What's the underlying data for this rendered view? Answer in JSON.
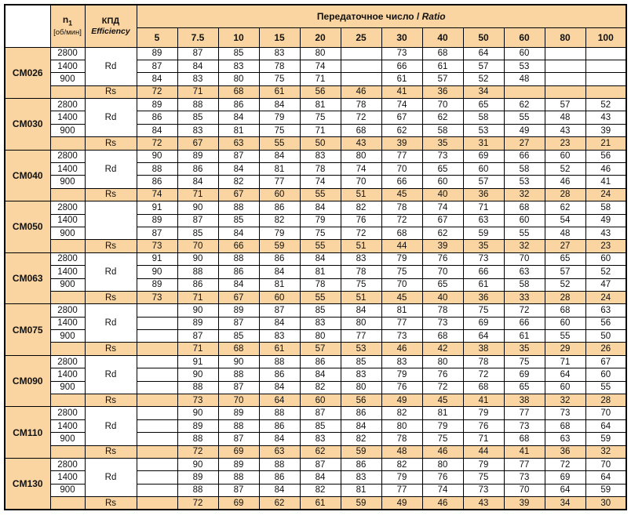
{
  "table": {
    "corner_label": "",
    "speed_header": {
      "main": "n",
      "sub": "1",
      "unit": "[об/мин]"
    },
    "efficiency_header": {
      "ru": "КПД",
      "en": "Efficiency"
    },
    "ratio_header": {
      "ru": "Передаточное число / ",
      "en": "Ratio"
    },
    "ratios": [
      "5",
      "7.5",
      "10",
      "15",
      "20",
      "25",
      "30",
      "40",
      "50",
      "60",
      "80",
      "100"
    ],
    "rd_label": "Rd",
    "rs_label": "Rs",
    "models": [
      {
        "name": "CM026",
        "rd": "Rd",
        "speeds": [
          {
            "rpm": "2800",
            "values": [
              "89",
              "87",
              "85",
              "83",
              "80",
              "",
              "73",
              "68",
              "64",
              "60",
              "",
              ""
            ]
          },
          {
            "rpm": "1400",
            "values": [
              "87",
              "84",
              "83",
              "78",
              "74",
              "",
              "66",
              "61",
              "57",
              "53",
              "",
              ""
            ]
          },
          {
            "rpm": "900",
            "values": [
              "84",
              "83",
              "80",
              "75",
              "71",
              "",
              "61",
              "57",
              "52",
              "48",
              "",
              ""
            ]
          }
        ],
        "rs": [
          "72",
          "71",
          "68",
          "61",
          "56",
          "46",
          "41",
          "36",
          "34",
          "",
          "",
          ""
        ]
      },
      {
        "name": "CM030",
        "rd": "Rd",
        "speeds": [
          {
            "rpm": "2800",
            "values": [
              "89",
              "88",
              "86",
              "84",
              "81",
              "78",
              "74",
              "70",
              "65",
              "62",
              "57",
              "52"
            ]
          },
          {
            "rpm": "1400",
            "values": [
              "86",
              "85",
              "84",
              "79",
              "75",
              "72",
              "67",
              "62",
              "58",
              "55",
              "48",
              "43"
            ]
          },
          {
            "rpm": "900",
            "values": [
              "84",
              "83",
              "81",
              "75",
              "71",
              "68",
              "62",
              "58",
              "53",
              "49",
              "43",
              "39"
            ]
          }
        ],
        "rs": [
          "72",
          "67",
          "63",
          "55",
          "50",
          "43",
          "39",
          "35",
          "31",
          "27",
          "23",
          "21"
        ]
      },
      {
        "name": "CM040",
        "rd": "Rd",
        "speeds": [
          {
            "rpm": "2800",
            "values": [
              "90",
              "89",
              "87",
              "84",
              "83",
              "80",
              "77",
              "73",
              "69",
              "66",
              "60",
              "56"
            ]
          },
          {
            "rpm": "1400",
            "values": [
              "88",
              "86",
              "84",
              "81",
              "78",
              "74",
              "70",
              "65",
              "60",
              "58",
              "52",
              "46"
            ]
          },
          {
            "rpm": "900",
            "values": [
              "86",
              "84",
              "82",
              "77",
              "74",
              "70",
              "66",
              "60",
              "57",
              "53",
              "46",
              "41"
            ]
          }
        ],
        "rs": [
          "74",
          "71",
          "67",
          "60",
          "55",
          "51",
          "45",
          "40",
          "36",
          "32",
          "28",
          "24"
        ]
      },
      {
        "name": "CM050",
        "rd": "",
        "speeds": [
          {
            "rpm": "2800",
            "values": [
              "91",
              "90",
              "88",
              "86",
              "84",
              "82",
              "78",
              "74",
              "71",
              "68",
              "62",
              "58"
            ]
          },
          {
            "rpm": "1400",
            "values": [
              "89",
              "87",
              "85",
              "82",
              "79",
              "76",
              "72",
              "67",
              "63",
              "60",
              "54",
              "49"
            ]
          },
          {
            "rpm": "900",
            "values": [
              "87",
              "85",
              "84",
              "79",
              "75",
              "72",
              "68",
              "62",
              "59",
              "55",
              "48",
              "43"
            ]
          }
        ],
        "rs": [
          "73",
          "70",
          "66",
          "59",
          "55",
          "51",
          "44",
          "39",
          "35",
          "32",
          "27",
          "23"
        ]
      },
      {
        "name": "CM063",
        "rd": "Rd",
        "speeds": [
          {
            "rpm": "2800",
            "values": [
              "91",
              "90",
              "88",
              "86",
              "84",
              "83",
              "79",
              "76",
              "73",
              "70",
              "65",
              "60"
            ]
          },
          {
            "rpm": "1400",
            "values": [
              "90",
              "88",
              "86",
              "84",
              "81",
              "78",
              "75",
              "70",
              "66",
              "63",
              "57",
              "52"
            ]
          },
          {
            "rpm": "900",
            "values": [
              "89",
              "86",
              "84",
              "81",
              "78",
              "75",
              "70",
              "65",
              "61",
              "58",
              "52",
              "47"
            ]
          }
        ],
        "rs": [
          "73",
          "71",
          "67",
          "60",
          "55",
          "51",
          "45",
          "40",
          "36",
          "33",
          "28",
          "24"
        ]
      },
      {
        "name": "CM075",
        "rd": "Rd",
        "speeds": [
          {
            "rpm": "2800",
            "values": [
              "",
              "90",
              "89",
              "87",
              "85",
              "84",
              "81",
              "78",
              "75",
              "72",
              "68",
              "63"
            ]
          },
          {
            "rpm": "1400",
            "values": [
              "",
              "89",
              "87",
              "84",
              "83",
              "80",
              "77",
              "73",
              "69",
              "66",
              "60",
              "56"
            ]
          },
          {
            "rpm": "900",
            "values": [
              "",
              "87",
              "85",
              "83",
              "80",
              "77",
              "73",
              "68",
              "64",
              "61",
              "55",
              "50"
            ]
          }
        ],
        "rs": [
          "",
          "71",
          "68",
          "61",
          "57",
          "53",
          "46",
          "42",
          "38",
          "35",
          "29",
          "26"
        ]
      },
      {
        "name": "CM090",
        "rd": "Rd",
        "speeds": [
          {
            "rpm": "2800",
            "values": [
              "",
              "91",
              "90",
              "88",
              "86",
              "85",
              "83",
              "80",
              "78",
              "75",
              "71",
              "67"
            ]
          },
          {
            "rpm": "1400",
            "values": [
              "",
              "90",
              "88",
              "86",
              "84",
              "83",
              "79",
              "76",
              "72",
              "69",
              "64",
              "60"
            ]
          },
          {
            "rpm": "900",
            "values": [
              "",
              "88",
              "87",
              "84",
              "82",
              "80",
              "76",
              "72",
              "68",
              "65",
              "60",
              "55"
            ]
          }
        ],
        "rs": [
          "",
          "73",
          "70",
          "64",
          "60",
          "56",
          "49",
          "45",
          "41",
          "38",
          "32",
          "28"
        ]
      },
      {
        "name": "CM110",
        "rd": "Rd",
        "speeds": [
          {
            "rpm": "2800",
            "values": [
              "",
              "90",
              "89",
              "88",
              "87",
              "86",
              "82",
              "81",
              "79",
              "77",
              "73",
              "70"
            ]
          },
          {
            "rpm": "1400",
            "values": [
              "",
              "89",
              "88",
              "86",
              "85",
              "84",
              "80",
              "79",
              "76",
              "73",
              "68",
              "64"
            ]
          },
          {
            "rpm": "900",
            "values": [
              "",
              "88",
              "87",
              "84",
              "83",
              "82",
              "78",
              "75",
              "71",
              "68",
              "63",
              "59"
            ]
          }
        ],
        "rs": [
          "",
          "72",
          "69",
          "63",
          "62",
          "59",
          "48",
          "46",
          "44",
          "41",
          "36",
          "32"
        ]
      },
      {
        "name": "CM130",
        "rd": "Rd",
        "speeds": [
          {
            "rpm": "2800",
            "values": [
              "",
              "90",
              "89",
              "88",
              "87",
              "86",
              "82",
              "80",
              "79",
              "77",
              "72",
              "70"
            ]
          },
          {
            "rpm": "1400",
            "values": [
              "",
              "89",
              "88",
              "86",
              "84",
              "83",
              "79",
              "76",
              "75",
              "73",
              "69",
              "64"
            ]
          },
          {
            "rpm": "900",
            "values": [
              "",
              "88",
              "87",
              "84",
              "82",
              "81",
              "77",
              "74",
              "73",
              "70",
              "64",
              "59"
            ]
          }
        ],
        "rs": [
          "",
          "72",
          "69",
          "62",
          "61",
          "59",
          "49",
          "46",
          "43",
          "39",
          "34",
          "30"
        ]
      }
    ],
    "colors": {
      "shading": "#fad5a1",
      "border": "#000000",
      "text": "#111111",
      "cell_background": "#ffffff"
    }
  }
}
